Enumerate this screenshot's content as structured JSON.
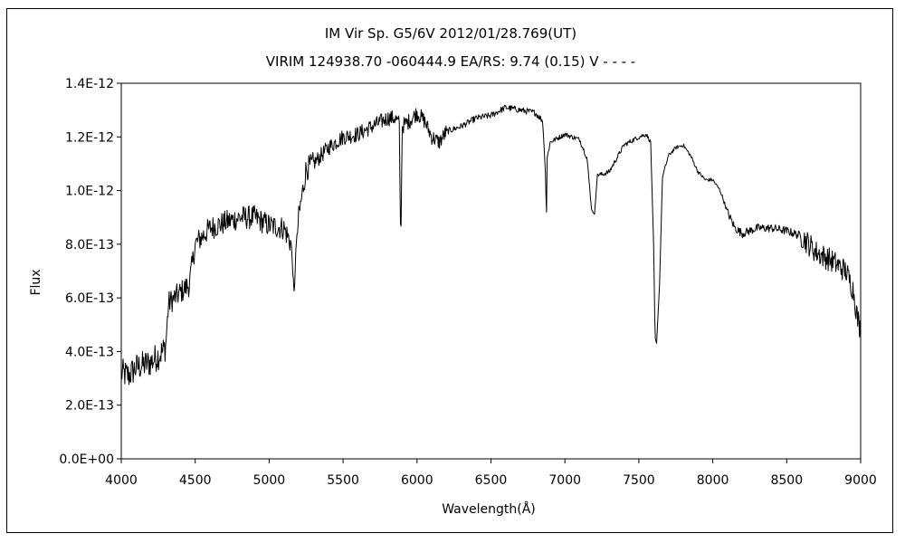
{
  "chart_data": {
    "type": "line",
    "title": "IM Vir    Sp. G5/6V    2012/01/28.769(UT)",
    "subtitle": "VIRIM 124938.70 -060444.9 EA/RS: 9.74 (0.15) V - - - -",
    "xlabel": "Wavelength(Å)",
    "ylabel": "Flux",
    "xlim": [
      4000,
      9000
    ],
    "ylim": [
      0,
      1.4e-12
    ],
    "x_ticks": [
      "4000",
      "4500",
      "5000",
      "5500",
      "6000",
      "6500",
      "7000",
      "7500",
      "8000",
      "8500",
      "9000"
    ],
    "y_ticks": [
      "0.0E+00",
      "2.0E-13",
      "4.0E-13",
      "6.0E-13",
      "8.0E-13",
      "1.0E-12",
      "1.2E-12",
      "1.4E-12"
    ],
    "grid": false,
    "line_color": "#000000",
    "anchors_x": [
      4000,
      4050,
      4100,
      4200,
      4280,
      4300,
      4320,
      4400,
      4460,
      4500,
      4600,
      4700,
      4800,
      4900,
      5000,
      5100,
      5150,
      5170,
      5180,
      5200,
      5250,
      5300,
      5400,
      5500,
      5600,
      5700,
      5800,
      5850,
      5880,
      5890,
      5900,
      5950,
      6000,
      6050,
      6100,
      6150,
      6200,
      6300,
      6400,
      6500,
      6600,
      6700,
      6800,
      6850,
      6870,
      6875,
      6880,
      6900,
      7000,
      7100,
      7150,
      7180,
      7200,
      7220,
      7250,
      7300,
      7400,
      7500,
      7550,
      7580,
      7600,
      7610,
      7620,
      7640,
      7660,
      7700,
      7750,
      7800,
      7850,
      7900,
      7950,
      8000,
      8050,
      8100,
      8150,
      8200,
      8300,
      8400,
      8500,
      8600,
      8700,
      8800,
      8900,
      8950,
      8980,
      9000
    ],
    "anchors_y": [
      3.2e-13,
      3.1e-13,
      3.4e-13,
      3.6e-13,
      4e-13,
      4.2e-13,
      5.8e-13,
      6.2e-13,
      6.5e-13,
      8e-13,
      8.6e-13,
      8.8e-13,
      9e-13,
      9e-13,
      8.7e-13,
      8.6e-13,
      8e-13,
      6e-13,
      7.8e-13,
      9e-13,
      1.08e-12,
      1.1e-12,
      1.16e-12,
      1.2e-12,
      1.21e-12,
      1.24e-12,
      1.27e-12,
      1.27e-12,
      1.25e-12,
      7.8e-13,
      1.24e-12,
      1.26e-12,
      1.29e-12,
      1.26e-12,
      1.2e-12,
      1.18e-12,
      1.22e-12,
      1.24e-12,
      1.27e-12,
      1.28e-12,
      1.31e-12,
      1.3e-12,
      1.29e-12,
      1.26e-12,
      1.05e-12,
      8.7e-13,
      1.12e-12,
      1.18e-12,
      1.21e-12,
      1.19e-12,
      1.12e-12,
      9.3e-13,
      9.1e-13,
      1.06e-12,
      1.06e-12,
      1.07e-12,
      1.17e-12,
      1.2e-12,
      1.21e-12,
      1.18e-12,
      8e-13,
      4.5e-13,
      4.3e-13,
      6.5e-13,
      1.05e-12,
      1.13e-12,
      1.16e-12,
      1.17e-12,
      1.13e-12,
      1.07e-12,
      1.04e-12,
      1.04e-12,
      1e-12,
      9.2e-13,
      8.6e-13,
      8.4e-13,
      8.6e-13,
      8.6e-13,
      8.5e-13,
      8.3e-13,
      7.7e-13,
      7.4e-13,
      7e-13,
      6.3e-13,
      5.2e-13,
      4.8e-13
    ]
  }
}
